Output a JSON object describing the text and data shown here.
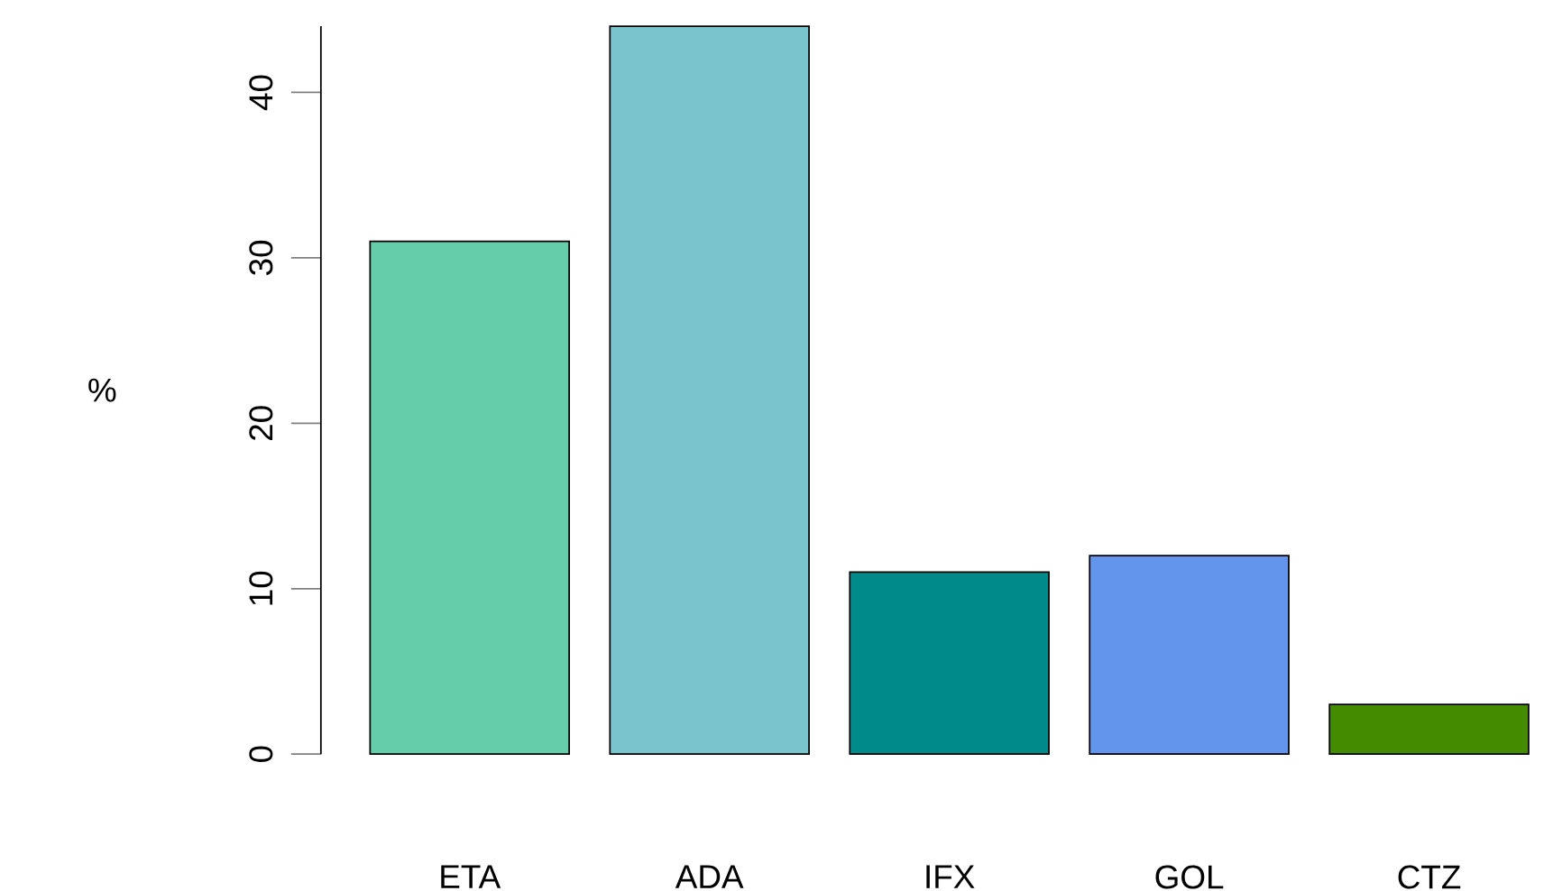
{
  "chart_data": {
    "type": "bar",
    "ylabel": "%",
    "categories": [
      "ETA",
      "ADA",
      "IFX",
      "GOL",
      "CTZ"
    ],
    "values": [
      31,
      44,
      11,
      12,
      3
    ],
    "colors": [
      "#66cdaa",
      "#7ac5cd",
      "#008b8b",
      "#6495ed",
      "#458b00"
    ],
    "ylim": [
      0,
      44
    ],
    "yticks": [
      0,
      10,
      20,
      30,
      40
    ]
  }
}
